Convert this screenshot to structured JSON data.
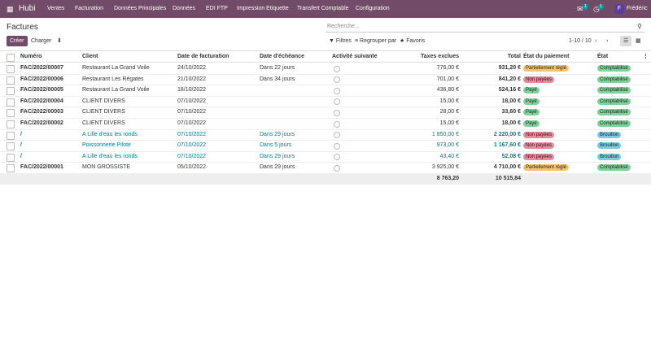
{
  "navbar": {
    "brand": "Hubi",
    "menu": [
      "Ventes",
      "Facturation",
      "Données Principales",
      "Données",
      "EDI FTP",
      "Impression Etiquette",
      "Transfert Comptable",
      "Configuration"
    ],
    "messages_badge": "1",
    "activities_badge": "1",
    "user_initial": "F",
    "user_name": "Frédéric"
  },
  "control_panel": {
    "title": "Factures",
    "search_placeholder": "Recherche...",
    "create": "Créer",
    "upload": "Charger",
    "filters": "Filtres",
    "group_by": "Regrouper par",
    "favorites": "Favoris",
    "pager": "1-10 / 10"
  },
  "table": {
    "columns": [
      "Numéro",
      "Client",
      "Date de facturation",
      "Date d'échéance",
      "Activité suivante",
      "Taxes exclues",
      "Total",
      "État du paiement",
      "État"
    ],
    "rows": [
      {
        "number": "FAC/2022/00007",
        "client": "Restaurant La Grand Voile",
        "invoice_date": "24/10/2022",
        "due_date": "Dans 22 jours",
        "untaxed": "776,00 €",
        "total": "931,20 €",
        "payment_state": "Partiellement réglé",
        "payment_color": "#f5c46c",
        "state": "Comptabilisé",
        "state_color": "#7fd39a",
        "text_color": "#333333"
      },
      {
        "number": "FAC/2022/00006",
        "client": "Restaurant Les Régates",
        "invoice_date": "21/10/2022",
        "due_date": "Dans 34 jours",
        "untaxed": "701,00 €",
        "total": "841,20 €",
        "payment_state": "Non payées",
        "payment_color": "#e88a9a",
        "state": "Comptabilisé",
        "state_color": "#7fd39a",
        "text_color": "#333333"
      },
      {
        "number": "FAC/2022/00005",
        "client": "Restaurant La Grand Voile",
        "invoice_date": "18/10/2022",
        "due_date": null,
        "untaxed": "436,80 €",
        "total": "524,16 €",
        "payment_state": "Payé",
        "payment_color": "#7fd39a",
        "state": "Comptabilisé",
        "state_color": "#7fd39a",
        "text_color": "#333333"
      },
      {
        "number": "FAC/2022/00004",
        "client": "CLIENT DIVERS",
        "invoice_date": "07/10/2022",
        "due_date": null,
        "untaxed": "15,00 €",
        "total": "18,00 €",
        "payment_state": "Payé",
        "payment_color": "#7fd39a",
        "state": "Comptabilisé",
        "state_color": "#7fd39a",
        "text_color": "#333333"
      },
      {
        "number": "FAC/2022/00003",
        "client": "CLIENT DIVERS",
        "invoice_date": "07/10/2022",
        "due_date": null,
        "untaxed": "28,00 €",
        "total": "33,60 €",
        "payment_state": "Payé",
        "payment_color": "#7fd39a",
        "state": "Comptabilisé",
        "state_color": "#7fd39a",
        "text_color": "#333333"
      },
      {
        "number": "FAC/2022/00002",
        "client": "CLIENT DIVERS",
        "invoice_date": "07/10/2022",
        "due_date": null,
        "untaxed": "15,00 €",
        "total": "18,00 €",
        "payment_state": "Payé",
        "payment_color": "#7fd39a",
        "state": "Comptabilisé",
        "state_color": "#7fd39a",
        "text_color": "#333333"
      },
      {
        "number": "/",
        "client": "A Lille d'eau les ronds",
        "invoice_date": "07/10/2022",
        "due_date": "Dans 29 jours",
        "untaxed": "1 850,00 €",
        "total": "2 220,00 €",
        "payment_state": "Non payées",
        "payment_color": "#e88a9a",
        "state": "Brouillon",
        "state_color": "#7ccbe0",
        "text_color": "#017e84"
      },
      {
        "number": "/",
        "client": "Poissonnerie Pilote",
        "invoice_date": "07/10/2022",
        "due_date": "Dans 5 jours",
        "untaxed": "973,00 €",
        "total": "1 167,60 €",
        "payment_state": "Non payées",
        "payment_color": "#e88a9a",
        "state": "Brouillon",
        "state_color": "#7ccbe0",
        "text_color": "#017e84"
      },
      {
        "number": "/",
        "client": "A Lille d'eau les ronds",
        "invoice_date": "07/10/2022",
        "due_date": "Dans 29 jours",
        "untaxed": "43,40 €",
        "total": "52,08 €",
        "payment_state": "Non payées",
        "payment_color": "#e88a9a",
        "state": "Brouillon",
        "state_color": "#7ccbe0",
        "text_color": "#017e84"
      },
      {
        "number": "FAC/2022/00001",
        "client": "MON GROSSISTE",
        "invoice_date": "05/10/2022",
        "due_date": "Dans 29 jours",
        "untaxed": "3 925,00 €",
        "total": "4 710,00 €",
        "payment_state": "Partiellement réglé",
        "payment_color": "#f5c46c",
        "state": "Comptabilisé",
        "state_color": "#7fd39a",
        "text_color": "#333333"
      }
    ],
    "totals": {
      "untaxed": "8 763,20",
      "total": "10 515,84"
    }
  }
}
